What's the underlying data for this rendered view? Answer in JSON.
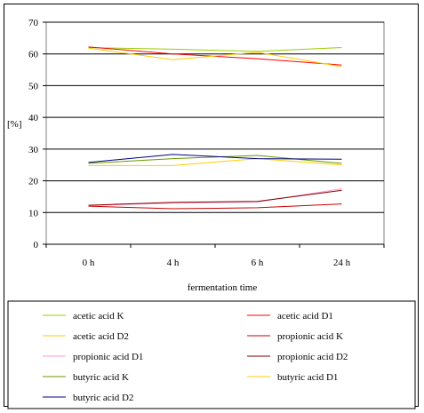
{
  "chart_data": {
    "type": "line",
    "title": "",
    "xlabel": "fermentation time",
    "ylabel": "[%]",
    "categories": [
      "0 h",
      "4 h",
      "6 h",
      "24 h"
    ],
    "ylim": [
      0,
      70
    ],
    "yticks": [
      0,
      10,
      20,
      30,
      40,
      50,
      60,
      70
    ],
    "grid": "horizontal",
    "legend_position": "bottom",
    "series": [
      {
        "name": "acetic acid K",
        "color": "#99cc00",
        "values": [
          62.0,
          61.5,
          60.8,
          62.0
        ]
      },
      {
        "name": "acetic acid D1",
        "color": "#ff0000",
        "values": [
          62.2,
          60.0,
          58.5,
          56.5
        ]
      },
      {
        "name": "acetic acid D2",
        "color": "#ffcc00",
        "values": [
          61.8,
          58.2,
          60.5,
          56.0
        ]
      },
      {
        "name": "propionic acid K",
        "color": "#cc0000",
        "values": [
          12.0,
          11.2,
          11.5,
          12.7
        ]
      },
      {
        "name": "propionic acid D1",
        "color": "#ff99cc",
        "values": [
          12.2,
          13.0,
          13.3,
          17.5
        ]
      },
      {
        "name": "propionic acid D2",
        "color": "#800000",
        "values": [
          12.3,
          13.2,
          13.5,
          17.0
        ]
      },
      {
        "name": "butyric acid K",
        "color": "#669900",
        "values": [
          25.5,
          27.0,
          28.0,
          25.5
        ]
      },
      {
        "name": "butyric acid D1",
        "color": "#ffcc00",
        "values": [
          24.8,
          24.8,
          27.0,
          25.0
        ]
      },
      {
        "name": "butyric acid D2",
        "color": "#000080",
        "values": [
          25.8,
          28.3,
          27.0,
          26.8
        ]
      }
    ]
  }
}
